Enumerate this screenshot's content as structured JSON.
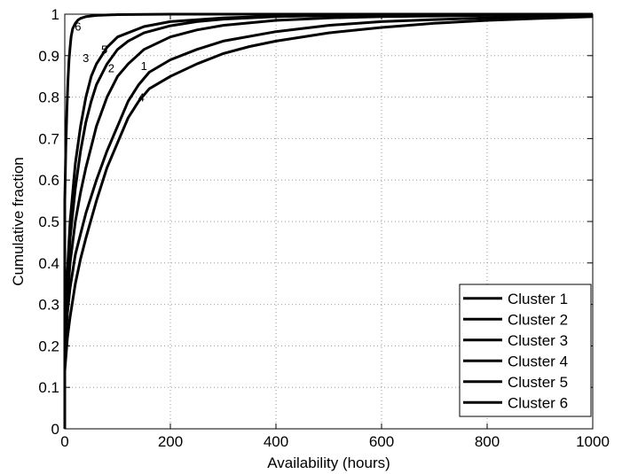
{
  "chart_data": {
    "type": "line",
    "title": "",
    "xlabel": "Availability (hours)",
    "ylabel": "Cumulative fraction",
    "xlim": [
      0,
      1000
    ],
    "ylim": [
      0,
      1
    ],
    "grid": true,
    "grid_style": "dotted",
    "legend_position": "bottom-right",
    "line_color": "#000000",
    "xticks": [
      0,
      200,
      400,
      600,
      800,
      1000
    ],
    "xtick_labels": [
      "0",
      "200",
      "400",
      "600",
      "800",
      "1000"
    ],
    "yticks": [
      0,
      0.1,
      0.2,
      0.3,
      0.4,
      0.5,
      0.6,
      0.7,
      0.8,
      0.9,
      1
    ],
    "ytick_labels": [
      "0",
      "0.1",
      "0.2",
      "0.3",
      "0.4",
      "0.5",
      "0.6",
      "0.7",
      "0.8",
      "0.9",
      "1"
    ],
    "series": [
      {
        "name": "Cluster 1",
        "curve_label": "1",
        "label_at": [
          150,
          0.865
        ],
        "x": [
          0,
          5,
          10,
          20,
          30,
          40,
          60,
          80,
          100,
          120,
          140,
          160,
          200,
          250,
          300,
          400,
          500,
          600,
          700,
          800,
          900,
          1000
        ],
        "y": [
          0.18,
          0.28,
          0.34,
          0.42,
          0.47,
          0.52,
          0.6,
          0.67,
          0.73,
          0.79,
          0.83,
          0.86,
          0.89,
          0.915,
          0.935,
          0.958,
          0.973,
          0.982,
          0.987,
          0.991,
          0.994,
          0.996
        ]
      },
      {
        "name": "Cluster 2",
        "curve_label": "2",
        "label_at": [
          88,
          0.86
        ],
        "x": [
          0,
          5,
          10,
          20,
          30,
          40,
          50,
          60,
          80,
          100,
          120,
          150,
          200,
          250,
          300,
          400,
          500,
          600,
          800,
          1000
        ],
        "y": [
          0.2,
          0.32,
          0.4,
          0.5,
          0.57,
          0.63,
          0.68,
          0.73,
          0.8,
          0.85,
          0.88,
          0.915,
          0.945,
          0.962,
          0.973,
          0.985,
          0.991,
          0.994,
          0.997,
          0.998
        ]
      },
      {
        "name": "Cluster 3",
        "curve_label": "3",
        "label_at": [
          40,
          0.885
        ],
        "x": [
          0,
          5,
          10,
          20,
          30,
          40,
          50,
          60,
          80,
          100,
          150,
          200,
          300,
          400,
          600,
          800,
          1000
        ],
        "y": [
          0.22,
          0.38,
          0.5,
          0.64,
          0.73,
          0.8,
          0.85,
          0.88,
          0.92,
          0.945,
          0.97,
          0.982,
          0.991,
          0.995,
          0.998,
          0.999,
          1
        ]
      },
      {
        "name": "Cluster 4",
        "curve_label": "4",
        "label_at": [
          145,
          0.79
        ],
        "x": [
          0,
          5,
          10,
          20,
          30,
          40,
          60,
          80,
          100,
          120,
          140,
          160,
          200,
          250,
          300,
          350,
          400,
          500,
          600,
          700,
          800,
          900,
          1000
        ],
        "y": [
          0.14,
          0.22,
          0.27,
          0.35,
          0.41,
          0.46,
          0.55,
          0.63,
          0.69,
          0.75,
          0.79,
          0.82,
          0.85,
          0.88,
          0.905,
          0.922,
          0.935,
          0.955,
          0.968,
          0.978,
          0.985,
          0.99,
          0.994
        ]
      },
      {
        "name": "Cluster 5",
        "curve_label": "5",
        "label_at": [
          75,
          0.905
        ],
        "x": [
          0,
          5,
          10,
          20,
          30,
          40,
          50,
          60,
          80,
          100,
          120,
          150,
          200,
          250,
          300,
          400,
          500,
          600,
          800,
          1000
        ],
        "y": [
          0.22,
          0.36,
          0.46,
          0.58,
          0.67,
          0.74,
          0.79,
          0.83,
          0.88,
          0.915,
          0.935,
          0.955,
          0.972,
          0.982,
          0.988,
          0.994,
          0.997,
          0.998,
          0.999,
          1
        ]
      },
      {
        "name": "Cluster 6",
        "curve_label": "6",
        "label_at": [
          25,
          0.96
        ],
        "x": [
          0,
          2,
          4,
          6,
          8,
          10,
          12,
          15,
          20,
          25,
          30,
          40,
          60,
          100,
          200,
          400,
          1000
        ],
        "y": [
          0.55,
          0.68,
          0.77,
          0.84,
          0.89,
          0.92,
          0.945,
          0.965,
          0.978,
          0.986,
          0.99,
          0.994,
          0.997,
          0.999,
          1,
          1,
          1
        ]
      }
    ]
  }
}
